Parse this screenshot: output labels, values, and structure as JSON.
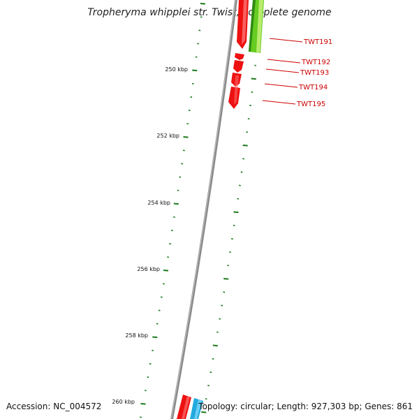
{
  "title": "Tropheryma whipplei str. Twist, complete genome",
  "accession_label": "Accession: NC_004572",
  "summary_label": "Topology: circular; Length: 927,303 bp; Genes: 861",
  "colors": {
    "backbone": "#8a8a8a",
    "tick": "#1a7a1a",
    "forward_gene": "#ee1111",
    "reverse_gene": "#66cc22",
    "other_gene": "#22aadd",
    "gene_label": "#cc0000"
  },
  "scale_labels": [
    "250 kbp",
    "252 kbp",
    "254 kbp",
    "256 kbp",
    "258 kbp",
    "260 kbp"
  ],
  "gene_labels": [
    "TWT191",
    "TWT192",
    "TWT193",
    "TWT194",
    "TWT195"
  ]
}
